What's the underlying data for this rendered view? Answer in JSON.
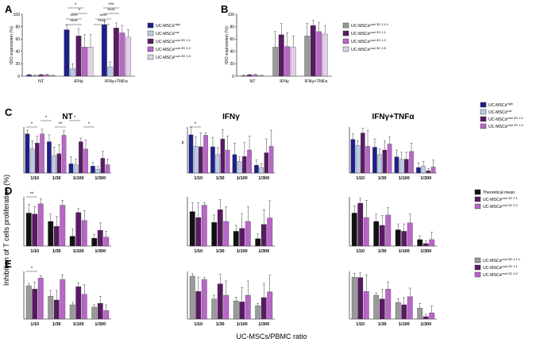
{
  "panel_letters": {
    "A": "A",
    "B": "B",
    "C": "C",
    "D": "D",
    "E": "E"
  },
  "y_common_label": "Inhibition of T cells proliferation (%)",
  "x_common_label": "UC-MSCs/PBMC ratio",
  "colors": {
    "high": "#1f1f8a",
    "low": "#b9cbe6",
    "p11": "#5a1a63",
    "p12": "#b966c8",
    "p15": "#e2cfe7",
    "gray": "#9a9a9a",
    "black": "#111111",
    "purple": "#5a1a63",
    "magenta": "#b966c8"
  },
  "panel_A": {
    "ylabel": "IDO expression (%)",
    "ylim": [
      0,
      100
    ],
    "yticks": [
      "0",
      "20",
      "40",
      "60",
      "80",
      "100"
    ],
    "groups": [
      "NT",
      "IFNγ",
      "IFNγ+TNFα"
    ],
    "legend": [
      {
        "name": "UC-MSCs",
        "sup": "high",
        "key": "high"
      },
      {
        "name": "UC-MSCs",
        "sup": "low",
        "key": "low"
      },
      {
        "name": "UC-MSCs",
        "sup": "pool 2D 1:1",
        "key": "p11"
      },
      {
        "name": "UC-MSCs",
        "sup": "pool 2D 1:2",
        "key": "p12"
      },
      {
        "name": "UC-MSCs",
        "sup": "pool 2D 1:5",
        "key": "p15"
      }
    ],
    "significance_marks": [
      "*",
      "*",
      "****",
      "****",
      "***",
      "****",
      "****",
      "****"
    ]
  },
  "panel_B": {
    "ylabel": "IDO expression (%)",
    "ylim": [
      0,
      100
    ],
    "yticks": [
      "0",
      "20",
      "40",
      "60",
      "80",
      "100"
    ],
    "groups": [
      "NT",
      "IFNγ",
      "IFNγ+TNFα"
    ],
    "legend": [
      {
        "name": "UC-MSCs",
        "sup": "pool 3D 1:1:1",
        "key": "gray"
      },
      {
        "name": "UC-MSCs",
        "sup": "pool 2D 1:1",
        "key": "p11"
      },
      {
        "name": "UC-MSCs",
        "sup": "pool 2D 1:2",
        "key": "p12"
      },
      {
        "name": "UC-MSCs",
        "sup": "pool 3D 1:5",
        "key": "p15"
      }
    ]
  },
  "chart_data": [
    {
      "id": "A",
      "type": "bar",
      "title": "",
      "ylabel": "IDO expression (%)",
      "ylim": [
        0,
        100
      ],
      "categories": [
        "NT",
        "IFNγ",
        "IFNγ+TNFα"
      ],
      "series": [
        {
          "name": "UC-MSCs high",
          "key": "high",
          "values": [
            2,
            75,
            83
          ],
          "errors": [
            1,
            8,
            6
          ]
        },
        {
          "name": "UC-MSCs low",
          "key": "low",
          "values": [
            1,
            12,
            15
          ],
          "errors": [
            1,
            8,
            8
          ]
        },
        {
          "name": "UC-MSCs pool 2D 1:1",
          "key": "p11",
          "values": [
            2,
            65,
            78
          ],
          "errors": [
            1,
            12,
            8
          ]
        },
        {
          "name": "UC-MSCs pool 2D 1:2",
          "key": "p12",
          "values": [
            2,
            47,
            70
          ],
          "errors": [
            1,
            20,
            12
          ]
        },
        {
          "name": "UC-MSCs pool 2D 1:5",
          "key": "p15",
          "values": [
            1,
            47,
            63
          ],
          "errors": [
            1,
            20,
            12
          ]
        }
      ]
    },
    {
      "id": "B",
      "type": "bar",
      "title": "",
      "ylabel": "IDO expression (%)",
      "ylim": [
        0,
        100
      ],
      "categories": [
        "NT",
        "IFNγ",
        "IFNγ+TNFα"
      ],
      "series": [
        {
          "name": "UC-MSCs pool 3D 1:1:1",
          "key": "gray",
          "values": [
            1,
            47,
            65
          ],
          "errors": [
            1,
            25,
            20
          ]
        },
        {
          "name": "UC-MSCs pool 2D 1:1",
          "key": "p11",
          "values": [
            2,
            67,
            82
          ],
          "errors": [
            1,
            18,
            8
          ]
        },
        {
          "name": "UC-MSCs pool 2D 1:2",
          "key": "p12",
          "values": [
            2,
            48,
            72
          ],
          "errors": [
            1,
            22,
            15
          ]
        },
        {
          "name": "UC-MSCs pool 3D 1:5",
          "key": "p15",
          "values": [
            1,
            47,
            68
          ],
          "errors": [
            1,
            18,
            14
          ]
        }
      ]
    },
    {
      "id": "C",
      "type": "bar",
      "ylim": [
        0,
        100
      ],
      "categories": [
        "1/10",
        "1/30",
        "1/100",
        "1/300"
      ],
      "legend": [
        {
          "name": "UC-MSCs",
          "sup": "high",
          "key": "high"
        },
        {
          "name": "UC-MSCs",
          "sup": "low",
          "key": "low"
        },
        {
          "name": "UC-MSCs",
          "sup": "pool 2D 1:1",
          "key": "p11"
        },
        {
          "name": "UC-MSCs",
          "sup": "pool 2D 1:2",
          "key": "p12"
        }
      ],
      "panels": [
        {
          "title": "NT",
          "ylabel": "",
          "marks": [
            "*",
            "*",
            "**",
            "*",
            "*"
          ],
          "series": [
            {
              "key": "high",
              "values": [
                85,
                68,
                20,
                15
              ],
              "errors": [
                8,
                15,
                15,
                8
              ]
            },
            {
              "key": "low",
              "values": [
                52,
                38,
                18,
                8
              ],
              "errors": [
                18,
                18,
                12,
                6
              ]
            },
            {
              "key": "p11",
              "values": [
                65,
                42,
                68,
                32
              ],
              "errors": [
                15,
                20,
                8,
                15
              ]
            },
            {
              "key": "p12",
              "values": [
                85,
                82,
                52,
                18
              ],
              "errors": [
                10,
                10,
                20,
                12
              ]
            }
          ]
        },
        {
          "title": "IFNγ",
          "ylabel": "P",
          "marks": [
            "*"
          ],
          "series": [
            {
              "key": "high",
              "values": [
                83,
                57,
                40,
                17
              ],
              "errors": [
                22,
                20,
                25,
                12
              ]
            },
            {
              "key": "low",
              "values": [
                58,
                40,
                25,
                12
              ],
              "errors": [
                20,
                15,
                10,
                8
              ]
            },
            {
              "key": "p11",
              "values": [
                57,
                74,
                36,
                44
              ],
              "errors": [
                30,
                20,
                30,
                30
              ]
            },
            {
              "key": "p12",
              "values": [
                82,
                50,
                50,
                58
              ],
              "errors": [
                5,
                30,
                30,
                35
              ]
            }
          ]
        },
        {
          "title": "IFNγ+TNFα",
          "ylabel": "",
          "marks": [],
          "series": [
            {
              "key": "high",
              "values": [
                73,
                56,
                35,
                12
              ],
              "errors": [
                12,
                18,
                15,
                10
              ]
            },
            {
              "key": "low",
              "values": [
                60,
                40,
                30,
                15
              ],
              "errors": [
                10,
                12,
                15,
                10
              ]
            },
            {
              "key": "p11",
              "values": [
                87,
                50,
                30,
                5
              ],
              "errors": [
                10,
                20,
                15,
                5
              ]
            },
            {
              "key": "p12",
              "values": [
                58,
                63,
                47,
                13
              ],
              "errors": [
                35,
                15,
                18,
                15
              ]
            }
          ]
        }
      ]
    },
    {
      "id": "D",
      "type": "bar",
      "ylim": [
        0,
        100
      ],
      "categories": [
        "1/10",
        "1/30",
        "1/100",
        "1/300"
      ],
      "legend": [
        {
          "name": "Theoretical mean",
          "sup": "",
          "key": "black"
        },
        {
          "name": "UC-MSCs",
          "sup": "pool 2D 1:1",
          "key": "purple"
        },
        {
          "name": "UC-MSCs",
          "sup": "pool 2D 1:2",
          "key": "magenta"
        }
      ],
      "panels": [
        {
          "title": "",
          "ylabel": "",
          "marks": [
            "**"
          ],
          "series": [
            {
              "key": "black",
              "values": [
                67,
                50,
                20,
                16
              ],
              "errors": [
                18,
                15,
                15,
                8
              ]
            },
            {
              "key": "purple",
              "values": [
                65,
                40,
                68,
                32
              ],
              "errors": [
                15,
                20,
                8,
                15
              ]
            },
            {
              "key": "magenta",
              "values": [
                86,
                83,
                52,
                18
              ],
              "errors": [
                10,
                10,
                20,
                12
              ]
            }
          ]
        },
        {
          "title": "",
          "ylabel": "",
          "marks": [],
          "series": [
            {
              "key": "black",
              "values": [
                70,
                48,
                30,
                15
              ],
              "errors": [
                18,
                15,
                12,
                10
              ]
            },
            {
              "key": "purple",
              "values": [
                58,
                74,
                36,
                44
              ],
              "errors": [
                30,
                20,
                30,
                30
              ]
            },
            {
              "key": "magenta",
              "values": [
                83,
                50,
                50,
                57
              ],
              "errors": [
                5,
                30,
                30,
                35
              ]
            }
          ]
        },
        {
          "title": "",
          "ylabel": "",
          "marks": [],
          "series": [
            {
              "key": "black",
              "values": [
                67,
                50,
                33,
                13
              ],
              "errors": [
                15,
                15,
                12,
                8
              ]
            },
            {
              "key": "purple",
              "values": [
                87,
                42,
                30,
                5
              ],
              "errors": [
                10,
                20,
                15,
                5
              ]
            },
            {
              "key": "magenta",
              "values": [
                58,
                63,
                47,
                13
              ],
              "errors": [
                35,
                15,
                18,
                15
              ]
            }
          ]
        }
      ]
    },
    {
      "id": "E",
      "type": "bar",
      "ylim": [
        0,
        100
      ],
      "categories": [
        "1/10",
        "1/30",
        "1/100",
        "1/300"
      ],
      "legend": [
        {
          "name": "UC-MSCs",
          "sup": "pool 3D 1:1:1",
          "key": "gray"
        },
        {
          "name": "UC-MSCs",
          "sup": "pool 2D 1:1",
          "key": "purple"
        },
        {
          "name": "UC-MSCs",
          "sup": "pool 2D 1:2",
          "key": "magenta"
        }
      ],
      "panels": [
        {
          "title": "",
          "ylabel": "",
          "marks": [
            "*"
          ],
          "series": [
            {
              "key": "gray",
              "values": [
                70,
                48,
                30,
                25
              ],
              "errors": [
                5,
                12,
                5,
                5
              ]
            },
            {
              "key": "purple",
              "values": [
                63,
                40,
                68,
                33
              ],
              "errors": [
                15,
                20,
                8,
                15
              ]
            },
            {
              "key": "magenta",
              "values": [
                86,
                83,
                52,
                18
              ],
              "errors": [
                5,
                10,
                20,
                12
              ]
            }
          ]
        },
        {
          "title": "",
          "ylabel": "",
          "marks": [],
          "series": [
            {
              "key": "gray",
              "values": [
                90,
                42,
                38,
                28
              ],
              "errors": [
                5,
                8,
                8,
                5
              ]
            },
            {
              "key": "purple",
              "values": [
                58,
                74,
                36,
                45
              ],
              "errors": [
                30,
                20,
                30,
                30
              ]
            },
            {
              "key": "magenta",
              "values": [
                83,
                50,
                50,
                57
              ],
              "errors": [
                5,
                30,
                30,
                35
              ]
            }
          ]
        },
        {
          "title": "",
          "ylabel": "",
          "marks": [],
          "series": [
            {
              "key": "gray",
              "values": [
                88,
                50,
                35,
                23
              ],
              "errors": [
                8,
                5,
                8,
                10
              ]
            },
            {
              "key": "purple",
              "values": [
                87,
                42,
                30,
                5
              ],
              "errors": [
                10,
                20,
                15,
                5
              ]
            },
            {
              "key": "magenta",
              "values": [
                58,
                63,
                47,
                13
              ],
              "errors": [
                35,
                15,
                18,
                15
              ]
            }
          ]
        }
      ]
    }
  ]
}
